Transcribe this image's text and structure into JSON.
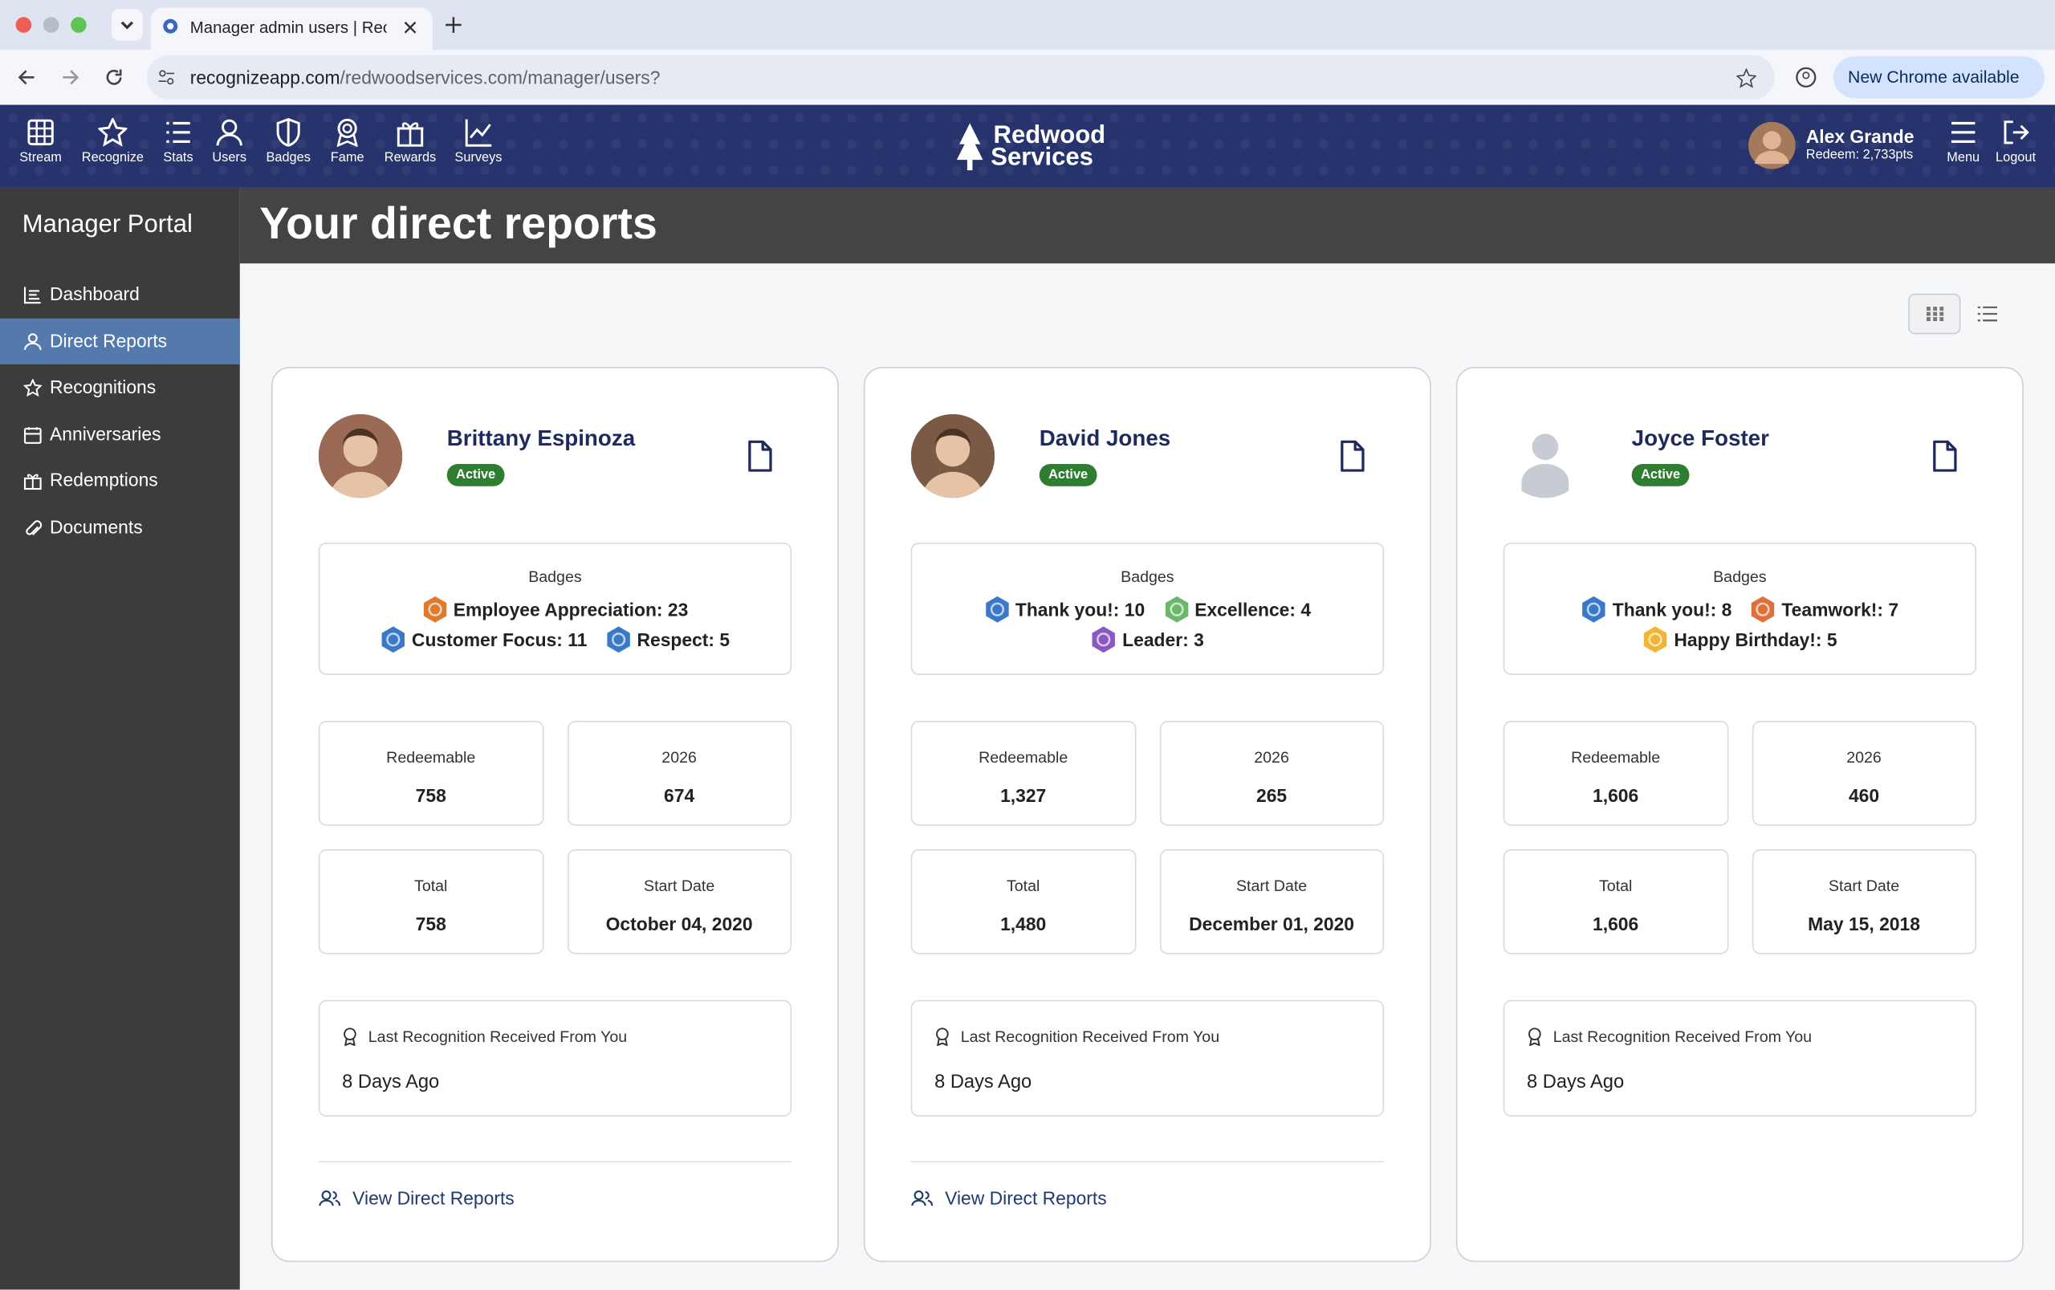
{
  "browser": {
    "tab_title": "Manager admin users | Recog",
    "url_host": "recognizeapp.com",
    "url_path": "/redwoodservices.com/manager/users?",
    "update_button": "New Chrome available"
  },
  "nav": {
    "items": [
      "Stream",
      "Recognize",
      "Stats",
      "Users",
      "Badges",
      "Fame",
      "Rewards",
      "Surveys"
    ],
    "logo": [
      "Redwood",
      "Services"
    ],
    "user": {
      "name": "Alex Grande",
      "points": "Redeem: 2,733pts"
    },
    "right_items": [
      "Menu",
      "Logout"
    ]
  },
  "sidebar": {
    "title": "Manager Portal",
    "items": [
      "Dashboard",
      "Direct Reports",
      "Recognitions",
      "Anniversaries",
      "Redemptions",
      "Documents"
    ],
    "active": "Direct Reports"
  },
  "page": {
    "title": "Your direct reports"
  },
  "cards": [
    {
      "name": "Brittany Espinoza",
      "status": "Active",
      "photo": true,
      "photo_color": "#9a6a55",
      "badges_title": "Badges",
      "badges": [
        {
          "label": "Employee Appreciation: 23",
          "color": "#e07a2e"
        },
        {
          "label": "Customer Focus: 11",
          "color": "#3a78c9"
        },
        {
          "label": "Respect: 5",
          "color": "#3a78c9"
        }
      ],
      "stats": [
        {
          "label": "Redeemable",
          "value": "758"
        },
        {
          "label": "2026",
          "value": "674"
        },
        {
          "label": "Total",
          "value": "758"
        },
        {
          "label": "Start Date",
          "value": "October 04, 2020"
        }
      ],
      "last": {
        "label": "Last Recognition Received From You",
        "value": "8 Days Ago"
      },
      "link": "View Direct Reports"
    },
    {
      "name": "David Jones",
      "status": "Active",
      "photo": true,
      "photo_color": "#7a5a44",
      "badges_title": "Badges",
      "badges": [
        {
          "label": "Thank you!: 10",
          "color": "#3a78c9"
        },
        {
          "label": "Excellence: 4",
          "color": "#6bb86a"
        },
        {
          "label": "Leader: 3",
          "color": "#8a58c4"
        }
      ],
      "stats": [
        {
          "label": "Redeemable",
          "value": "1,327"
        },
        {
          "label": "2026",
          "value": "265"
        },
        {
          "label": "Total",
          "value": "1,480"
        },
        {
          "label": "Start Date",
          "value": "December 01, 2020"
        }
      ],
      "last": {
        "label": "Last Recognition Received From You",
        "value": "8 Days Ago"
      },
      "link": "View Direct Reports"
    },
    {
      "name": "Joyce Foster",
      "status": "Active",
      "photo": false,
      "photo_color": "#c7ccd4",
      "badges_title": "Badges",
      "badges": [
        {
          "label": "Thank you!: 8",
          "color": "#3a78c9"
        },
        {
          "label": "Teamwork!: 7",
          "color": "#e0703a"
        },
        {
          "label": "Happy Birthday!: 5",
          "color": "#f2b533"
        }
      ],
      "stats": [
        {
          "label": "Redeemable",
          "value": "1,606"
        },
        {
          "label": "2026",
          "value": "460"
        },
        {
          "label": "Total",
          "value": "1,606"
        },
        {
          "label": "Start Date",
          "value": "May 15, 2018"
        }
      ],
      "last": {
        "label": "Last Recognition Received From You",
        "value": "8 Days Ago"
      }
    }
  ]
}
